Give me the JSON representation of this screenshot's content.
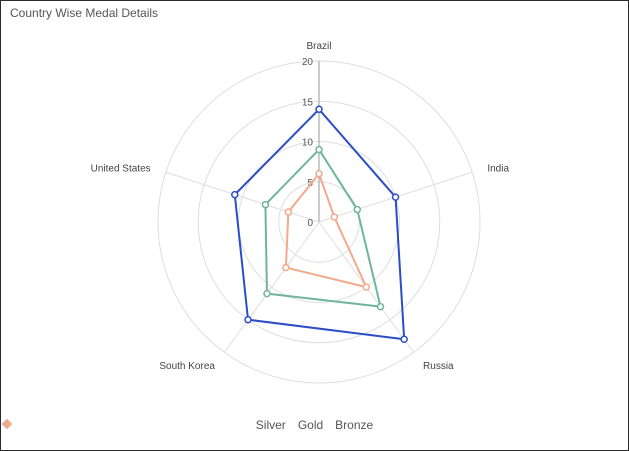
{
  "chart_data": {
    "type": "radar",
    "title": "Country Wise Medal Details",
    "categories": [
      "Brazil",
      "India",
      "Russia",
      "South Korea",
      "United States"
    ],
    "radial_ticks": [
      "0",
      "5",
      "10",
      "15",
      "20"
    ],
    "rmax": 20,
    "series": [
      {
        "name": "Silver",
        "color": "#2b4dc7",
        "values": [
          14,
          10,
          18,
          15,
          11
        ]
      },
      {
        "name": "Gold",
        "color": "#6fb59d",
        "values": [
          9,
          5,
          13,
          11,
          7
        ]
      },
      {
        "name": "Bronze",
        "color": "#f2a98c",
        "values": [
          6,
          2,
          10,
          7,
          4
        ]
      }
    ],
    "legend_position": "bottom"
  }
}
